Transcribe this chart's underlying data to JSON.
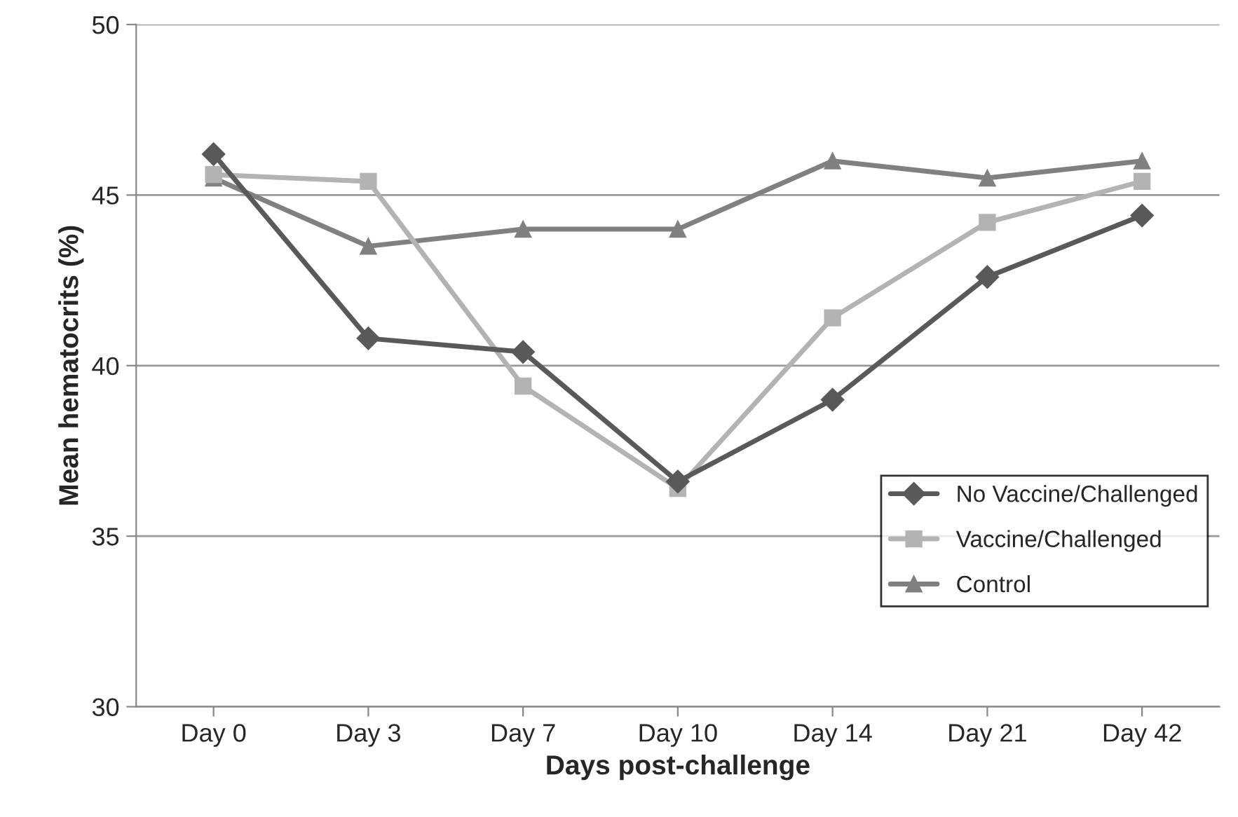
{
  "chart_data": {
    "type": "line",
    "xlabel": "Days post-challenge",
    "ylabel": "Mean hematocrits (%)",
    "categories": [
      "Day 0",
      "Day 3",
      "Day 7",
      "Day 10",
      "Day 14",
      "Day 21",
      "Day 42"
    ],
    "series": [
      {
        "name": "No Vaccine/Challenged",
        "color": "#595959",
        "marker": "diamond",
        "values": [
          46.2,
          40.8,
          40.4,
          36.6,
          39.0,
          42.6,
          44.4
        ]
      },
      {
        "name": "Vaccine/Challenged",
        "color": "#b3b3b3",
        "marker": "square",
        "values": [
          45.6,
          45.4,
          39.4,
          36.4,
          41.4,
          44.2,
          45.4
        ]
      },
      {
        "name": "Control",
        "color": "#808080",
        "marker": "triangle",
        "values": [
          45.5,
          43.5,
          44.0,
          44.0,
          46.0,
          45.5,
          46.0
        ]
      }
    ],
    "ylim": [
      30,
      50
    ],
    "yticks": [
      30,
      35,
      40,
      45,
      50
    ],
    "grid": "y",
    "legend": "bottom right",
    "line_style": "solid"
  }
}
